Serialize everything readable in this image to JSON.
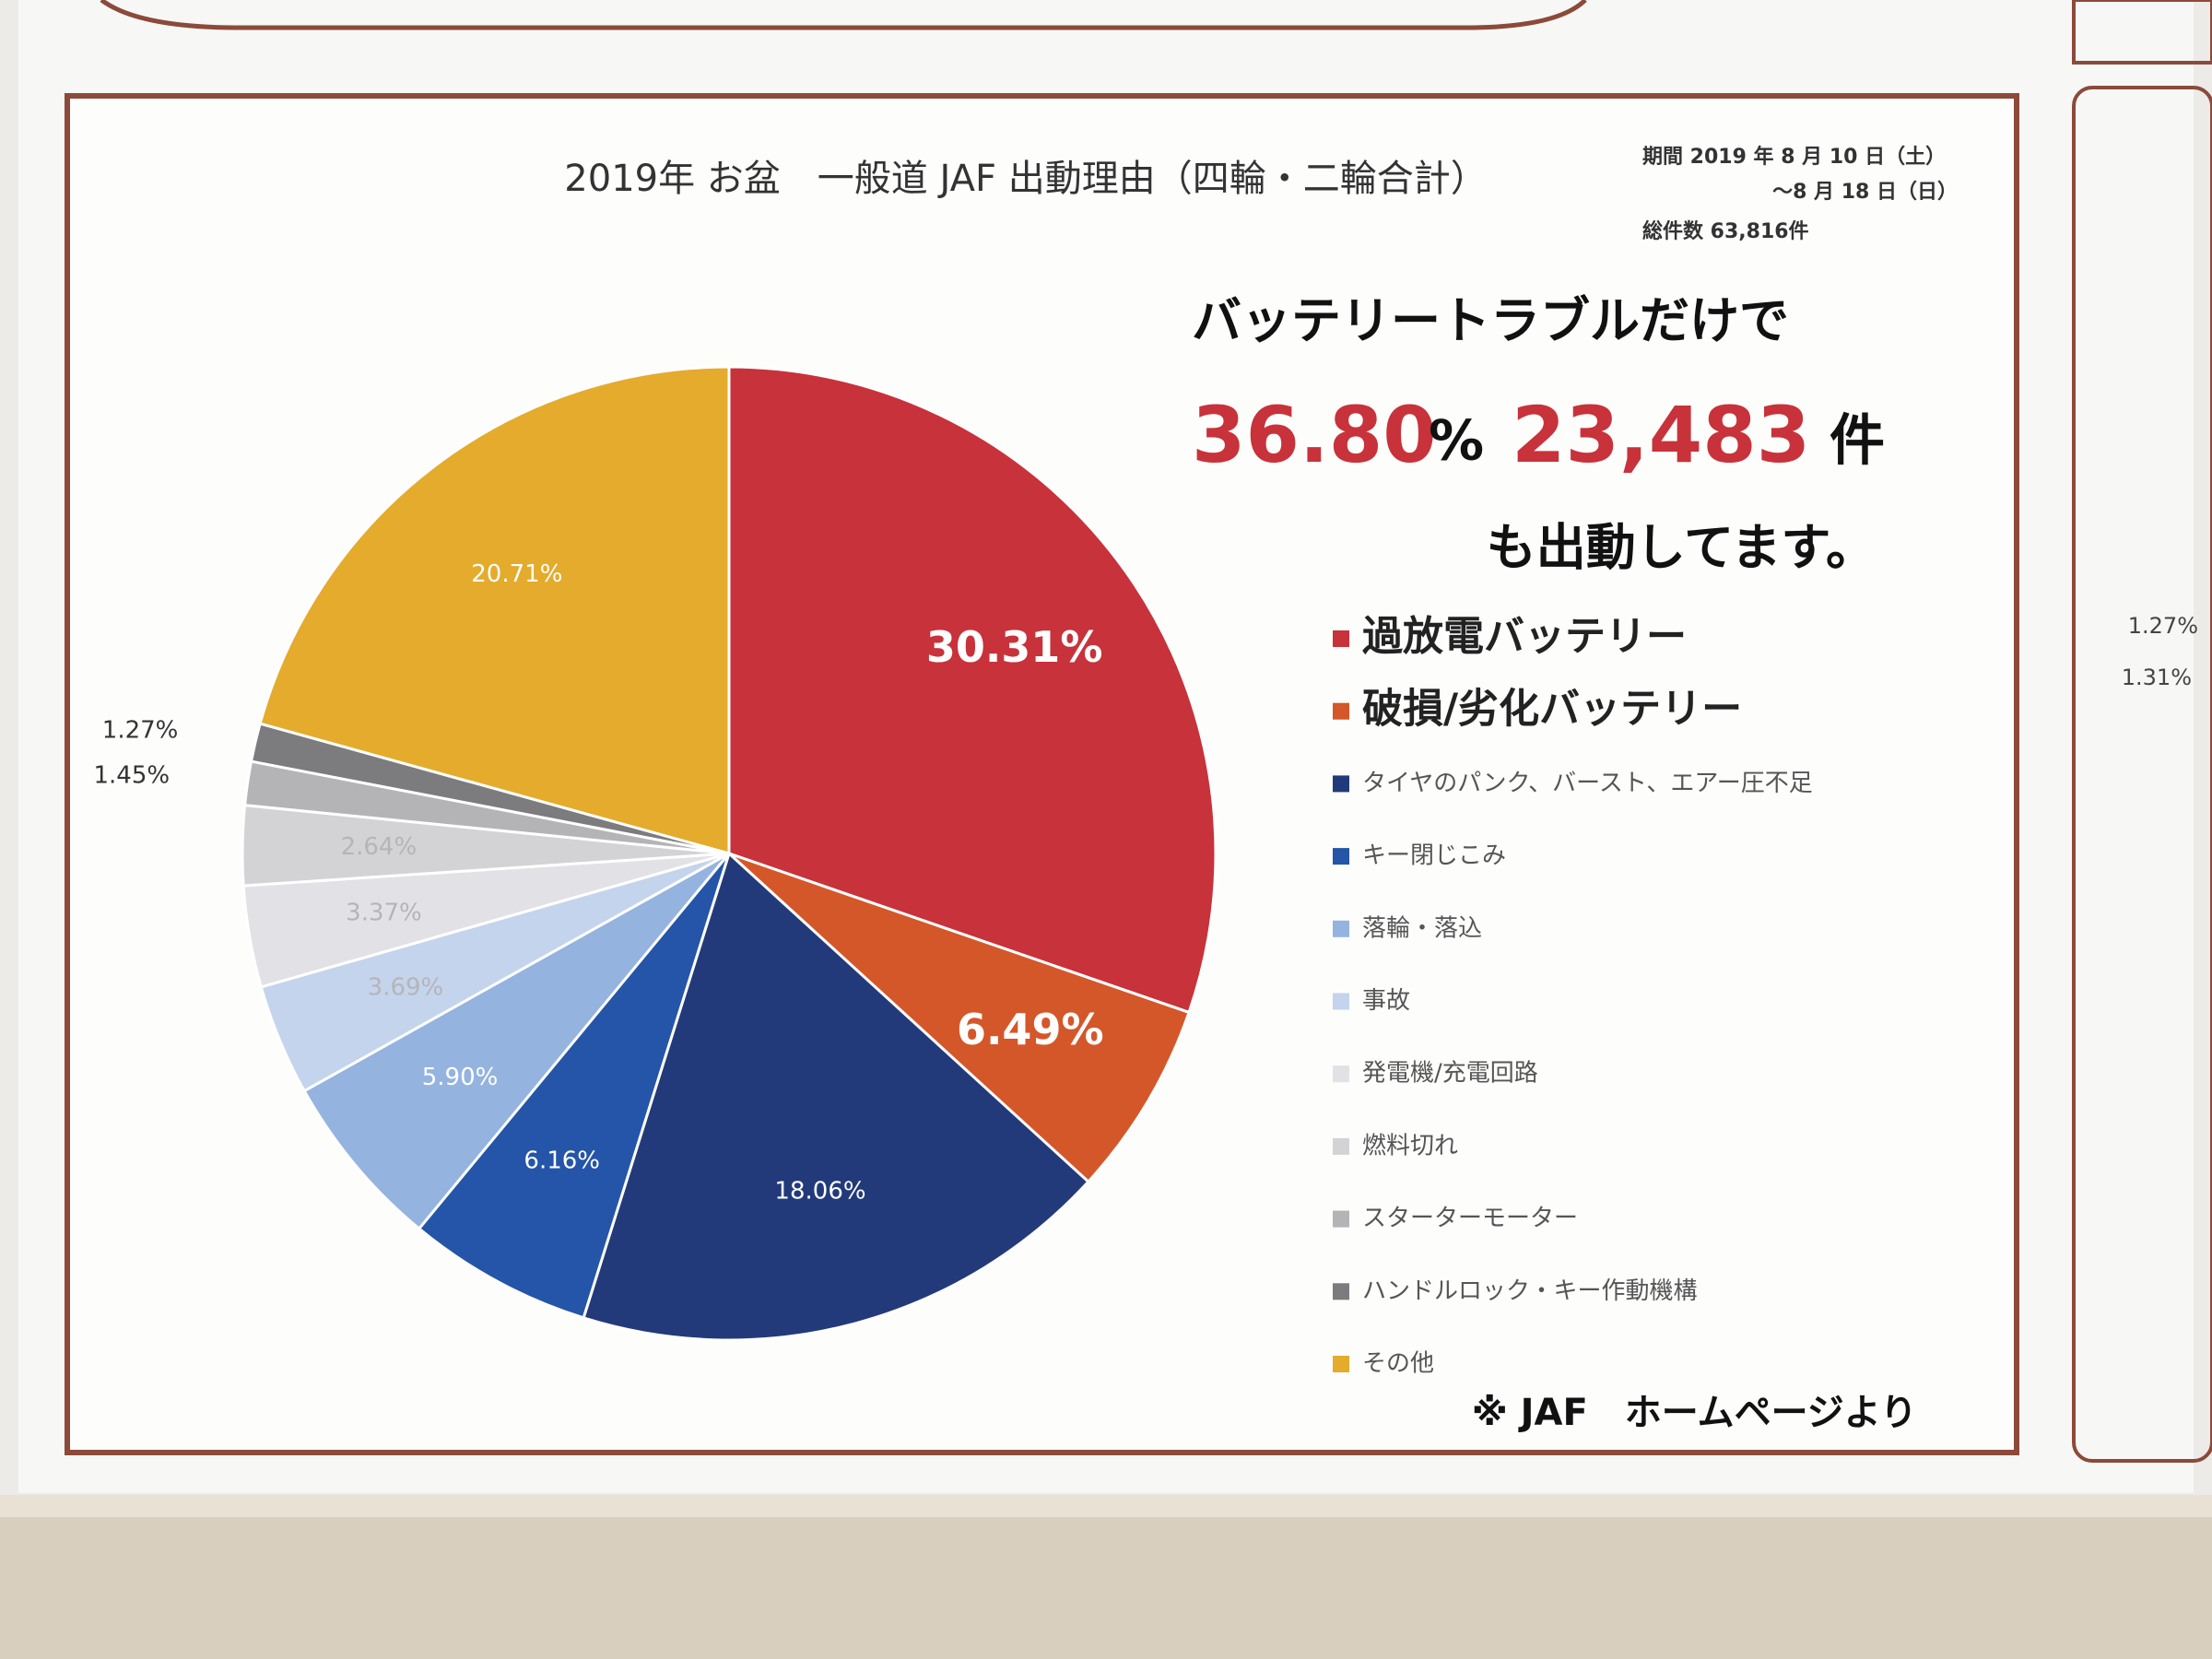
{
  "chart_data": {
    "type": "pie",
    "title": "2019年 お盆　一般道 JAF 出動理由（四輪・二輪合計）",
    "period": [
      "期間 2019 年 8 月 10 日（土）",
      "～8 月 18 日（日）"
    ],
    "total": "総件数 63,816件",
    "headline": [
      "バッテリートラブルだけで",
      "36.80",
      "%",
      "23,483",
      "件",
      "も出動してます。"
    ],
    "source": "※ JAF　ホームページより",
    "categories": [
      "過放電バッテリー",
      "破損/劣化バッテリー",
      "タイヤのパンク、バースト、エアー圧不足",
      "キー閉じこみ",
      "落輪・落込",
      "事故",
      "発電機/充電回路",
      "燃料切れ",
      "スターターモーター",
      "ハンドルロック・キー作動機構",
      "その他"
    ],
    "values": [
      30.31,
      6.49,
      18.06,
      6.16,
      5.9,
      3.69,
      3.37,
      2.64,
      1.45,
      1.27,
      20.71
    ],
    "value_labels": [
      "30.31%",
      "6.49%",
      "18.06%",
      "6.16%",
      "5.90%",
      "3.69%",
      "3.37%",
      "2.64%",
      "1.45%",
      "1.27%",
      "20.71%"
    ],
    "colors": [
      "#c8323a",
      "#d4572a",
      "#233a7a",
      "#2455a8",
      "#94b3df",
      "#c4d4ec",
      "#e2e2e6",
      "#d3d3d6",
      "#b4b4b7",
      "#7c7c7f",
      "#e4ab2c"
    ],
    "legend": "right",
    "fragments": [
      "1.27%",
      "1.31%"
    ]
  }
}
